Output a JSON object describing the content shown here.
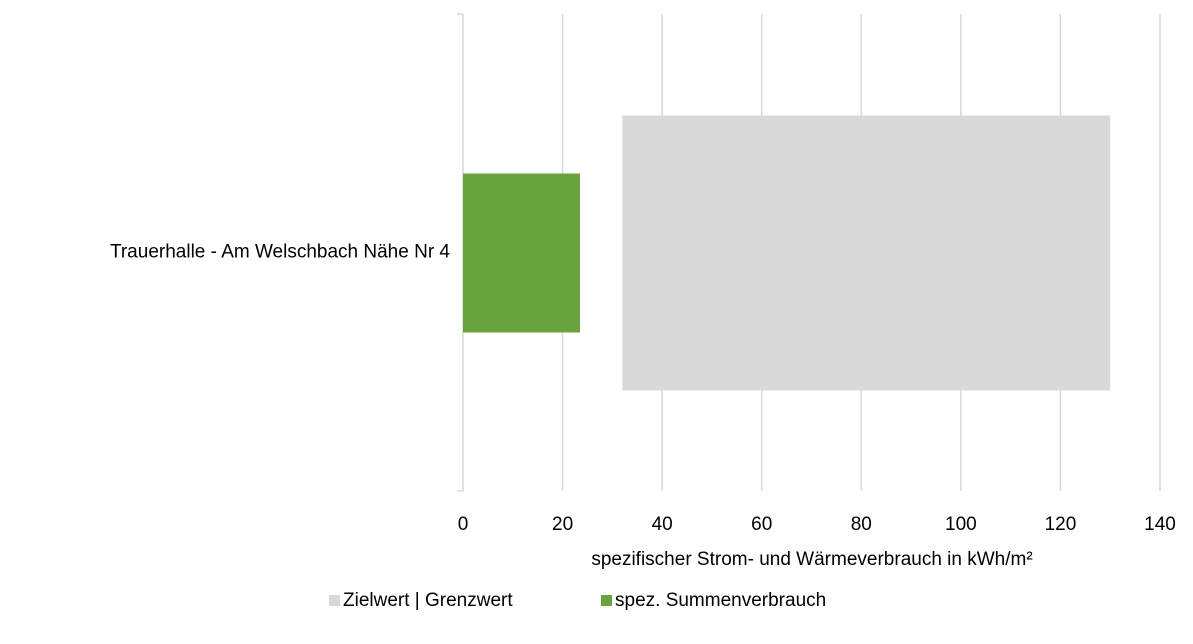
{
  "chart_data": {
    "type": "bar",
    "orientation": "horizontal",
    "categories": [
      "Trauerhalle - Am Welschbach Nähe Nr 4"
    ],
    "series": [
      {
        "name": "Zielwert | Grenzwert",
        "color": "#d9d9d9",
        "values": [
          [
            32,
            130
          ]
        ]
      },
      {
        "name": "spez. Summenverbrauch",
        "color": "#6aa23d",
        "values": [
          23.5
        ]
      }
    ],
    "xlabel": "spezifischer Strom- und Wärmeverbrauch in kWh/m²",
    "xlim": [
      0,
      140
    ],
    "xticks": [
      0,
      20,
      40,
      60,
      80,
      100,
      120,
      140
    ],
    "grid": true,
    "legend": "bottom"
  }
}
